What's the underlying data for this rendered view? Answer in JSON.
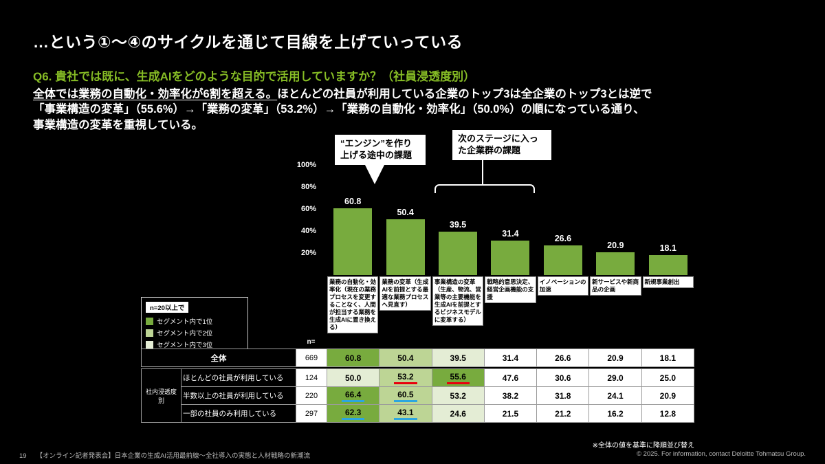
{
  "slide": {
    "title": "…という①～④のサイクルを通じて目線を上げていっている",
    "question": "Q6. 貴社では既に、生成AIをどのような目的で活用していますか？（社員浸透度別）",
    "body_underline": "全体では業務の自動化・効率化が6割を超える。",
    "body_line1_rest": "ほとんどの社員が利用している企業のトップ3は全企業のトップ3とは逆で",
    "body_line2": "「事業構造の変革」（55.6%）→「業務の変革」（53.2%）→「業務の自動化・効率化」（50.0%）の順になっている通り、",
    "body_line3": "事業構造の変革を重視している。",
    "sort_note": "※全体の値を基準に降順並び替え",
    "page_number": "19",
    "footer_left": "【オンライン記者発表会】日本企業の生成AI活用最前線～全社導入の実態と人材戦略の新潮流",
    "footer_right": "© 2025. For information, contact Deloitte Tohmatsu Group."
  },
  "callouts": {
    "engine": "“エンジン”を作り上げる途中の課題",
    "next_stage": "次のステージに入った企業群の課題"
  },
  "legend": {
    "header": "n=20以上で",
    "items": [
      {
        "label": "セグメント内で1位",
        "color": "#78AB3E"
      },
      {
        "label": "セグメント内で2位",
        "color": "#BDD595"
      },
      {
        "label": "セグメント内で3位",
        "color": "#E4EDD5"
      }
    ]
  },
  "chart_data": {
    "type": "bar",
    "title": "",
    "xlabel": "",
    "ylabel": "",
    "ylim": [
      0,
      100
    ],
    "yticks": [
      100,
      80,
      60,
      40,
      20
    ],
    "grid": false,
    "bar_color": "#78AB3E",
    "categories": [
      "業務の自動化・効率化（現在の業務プロセスを変更することなく、人間が担当する業務を生成AIに置き換える）",
      "業務の変革（生成AIを前提とする最適な業務プロセスへ見直す）",
      "事業構造の変革（生産、物流、営業等の主要機能を生成AIを前提とするビジネスモデルに変革する）",
      "戦略的意思決定、経営企画機能の支援",
      "イノベーションの加速",
      "新サービスや新商品の企画",
      "新規事業創出"
    ],
    "values": [
      60.8,
      50.4,
      39.5,
      31.4,
      26.6,
      20.9,
      18.1
    ],
    "series": [
      {
        "name": "全体",
        "n": 669,
        "values": [
          60.8,
          50.4,
          39.5,
          31.4,
          26.6,
          20.9,
          18.1
        ]
      },
      {
        "name": "ほとんどの社員が利用している",
        "n": 124,
        "values": [
          50.0,
          53.2,
          55.6,
          47.6,
          30.6,
          29.0,
          25.0
        ]
      },
      {
        "name": "半数以上の社員が利用している",
        "n": 220,
        "values": [
          66.4,
          60.5,
          53.2,
          38.2,
          31.8,
          24.1,
          20.9
        ]
      },
      {
        "name": "一部の社員のみ利用している",
        "n": 297,
        "values": [
          62.3,
          43.1,
          24.6,
          21.5,
          21.2,
          16.2,
          12.8
        ]
      }
    ]
  },
  "table": {
    "n_header": "n=",
    "group_label": "社内浸透度別",
    "rank_colors": {
      "1": "#78AB3E",
      "2": "#BDD595",
      "3": "#E4EDD5"
    },
    "underline_colors": {
      "red": "#e8000d",
      "blue": "#2ca6e0"
    },
    "ranks": [
      [
        1,
        2,
        3,
        0,
        0,
        0,
        0
      ],
      [
        3,
        2,
        1,
        0,
        0,
        0,
        0
      ],
      [
        1,
        2,
        3,
        0,
        0,
        0,
        0
      ],
      [
        1,
        2,
        3,
        0,
        0,
        0,
        0
      ]
    ],
    "underlines": [
      [
        "",
        "",
        "",
        "",
        "",
        "",
        ""
      ],
      [
        "",
        "red",
        "red",
        "",
        "",
        "",
        ""
      ],
      [
        "blue",
        "blue",
        "",
        "",
        "",
        "",
        ""
      ],
      [
        "blue",
        "blue",
        "",
        "",
        "",
        "",
        ""
      ]
    ]
  }
}
